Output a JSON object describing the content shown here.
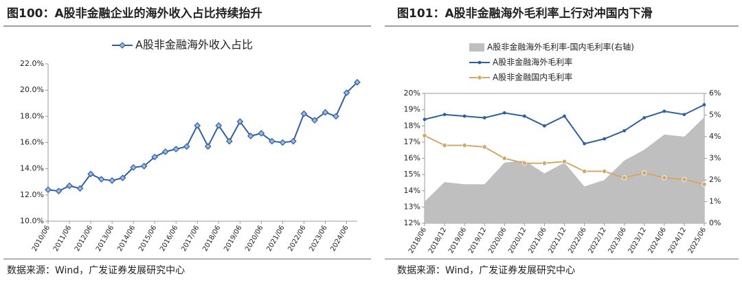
{
  "chart_data": [
    {
      "type": "line",
      "title": "图100：A股非金融企业的海外收入占比持续抬升",
      "source": "数据来源：Wind，广发证券发展研究中心",
      "categories": [
        "2010/06",
        null,
        "2011/06",
        null,
        "2012/06",
        null,
        "2013/06",
        null,
        "2014/06",
        null,
        "2015/06",
        null,
        "2016/06",
        null,
        "2017/06",
        null,
        "2018/06",
        null,
        "2019/06",
        null,
        "2020/06",
        null,
        "2021/06",
        null,
        "2022/06",
        null,
        "2023/06",
        null,
        "2024/06",
        null
      ],
      "series": [
        {
          "name": "A股非金融海外收入占比",
          "color": "#2e5fa1",
          "marker": "diamond",
          "values": [
            12.4,
            12.3,
            12.7,
            12.5,
            13.6,
            13.2,
            13.1,
            13.3,
            14.1,
            14.2,
            14.9,
            15.3,
            15.5,
            15.7,
            17.3,
            15.7,
            17.3,
            16.1,
            17.6,
            16.5,
            16.7,
            16.1,
            16.0,
            16.1,
            18.2,
            17.7,
            18.3,
            18.0,
            19.8,
            20.6
          ]
        }
      ],
      "ylim": [
        10,
        22
      ],
      "yticks": [
        {
          "value": 10,
          "label": "10.0%"
        },
        {
          "value": 12,
          "label": "12.0%"
        },
        {
          "value": 14,
          "label": "14.0%"
        },
        {
          "value": 16,
          "label": "16.0%"
        },
        {
          "value": 18,
          "label": "18.0%"
        },
        {
          "value": 20,
          "label": "20.0%"
        },
        {
          "value": 22,
          "label": "22.0%"
        }
      ]
    },
    {
      "type": "combo",
      "title": "图101：A股非金融海外毛利率上行对冲国内下滑",
      "source": "数据来源：Wind，广发证券发展研究中心",
      "categories": [
        "2018/06",
        "2018/12",
        "2019/06",
        "2019/12",
        "2020/06",
        "2020/12",
        "2021/06",
        "2021/12",
        "2022/06",
        "2022/12",
        "2023/06",
        "2023/12",
        "2024/06",
        "2024/12",
        "2025/06"
      ],
      "series": [
        {
          "name": "A股非金融海外毛利率-国内毛利率(右轴)",
          "type": "area",
          "axis": "y2",
          "color": "#bfbfbf",
          "values": [
            1.0,
            1.9,
            1.8,
            1.8,
            2.8,
            2.9,
            2.3,
            2.8,
            1.7,
            2.0,
            2.9,
            3.4,
            4.1,
            4.0,
            4.9
          ]
        },
        {
          "name": "A股非金融海外毛利率",
          "type": "line",
          "color": "#2e5fa1",
          "marker": "dot",
          "values": [
            18.4,
            18.7,
            18.6,
            18.5,
            18.8,
            18.6,
            18.0,
            18.6,
            16.9,
            17.2,
            17.7,
            18.5,
            18.9,
            18.7,
            19.3
          ]
        },
        {
          "name": "A股非金融国内毛利率",
          "type": "line",
          "color": "#d4a76a",
          "marker": "circle",
          "values": [
            17.4,
            16.8,
            16.8,
            16.7,
            16.0,
            15.7,
            15.7,
            15.8,
            15.2,
            15.2,
            14.8,
            15.1,
            14.8,
            14.7,
            14.4
          ]
        }
      ],
      "ylim": [
        12,
        20
      ],
      "yticks": [
        {
          "value": 12,
          "label": "12%"
        },
        {
          "value": 13,
          "label": "13%"
        },
        {
          "value": 14,
          "label": "14%"
        },
        {
          "value": 15,
          "label": "15%"
        },
        {
          "value": 16,
          "label": "16%"
        },
        {
          "value": 17,
          "label": "17%"
        },
        {
          "value": 18,
          "label": "18%"
        },
        {
          "value": 19,
          "label": "19%"
        },
        {
          "value": 20,
          "label": "20%"
        }
      ],
      "y2lim": [
        0,
        6
      ],
      "y2ticks": [
        {
          "value": 0,
          "label": "0%"
        },
        {
          "value": 1,
          "label": "1%"
        },
        {
          "value": 2,
          "label": "2%"
        },
        {
          "value": 3,
          "label": "3%"
        },
        {
          "value": 4,
          "label": "4%"
        },
        {
          "value": 5,
          "label": "5%"
        },
        {
          "value": 6,
          "label": "6%"
        }
      ]
    }
  ]
}
